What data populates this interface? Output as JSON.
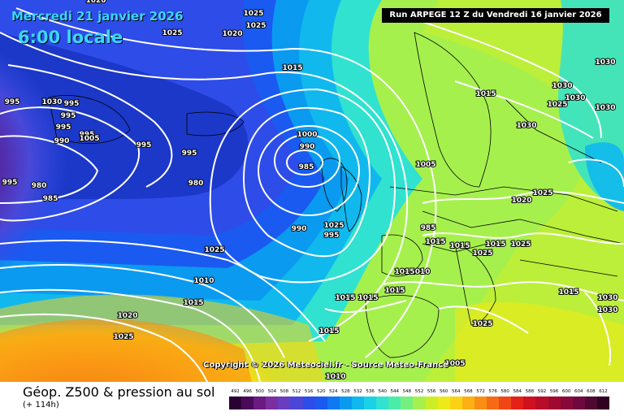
{
  "header": {
    "date": "Mercredi 21 janvier 2026",
    "time": "6:00 locale",
    "run": "Run ARPEGE 12 Z du Vendredi 16 janvier 2026"
  },
  "map": {
    "copyright": "Copyright © 2026 Meteociel.fr - Source Meteo-France",
    "pressure_labels": [
      "1020",
      "1025",
      "1025",
      "1025",
      "1020",
      "1015",
      "1015",
      "1030",
      "1030",
      "1030",
      "1030",
      "1025",
      "1030",
      "1030",
      "995",
      "995",
      "995",
      "995",
      "995",
      "1005",
      "995",
      "995",
      "980",
      "985",
      "990",
      "995",
      "1000",
      "990",
      "985",
      "980",
      "1005",
      "1020",
      "1025",
      "1025",
      "990",
      "995",
      "985",
      "1015",
      "1015",
      "1015",
      "1025",
      "1025",
      "1025",
      "1010",
      "1010",
      "1015",
      "1015",
      "1015",
      "1015",
      "1015",
      "1015",
      "1020",
      "1025",
      "1025",
      "1005",
      "1010",
      "1015",
      "1030",
      "1030"
    ],
    "low_centers": [
      "980",
      "980"
    ]
  },
  "footer": {
    "title": "Géop. Z500 & pression au sol",
    "subtitle": "(+ 114h)"
  },
  "legend": {
    "ticks": [
      "492",
      "496",
      "500",
      "504",
      "508",
      "512",
      "516",
      "520",
      "524",
      "528",
      "532",
      "536",
      "540",
      "544",
      "548",
      "552",
      "556",
      "560",
      "564",
      "568",
      "572",
      "576",
      "580",
      "584",
      "588",
      "592",
      "596",
      "600",
      "604",
      "608",
      "612"
    ],
    "colors": [
      "#2a0033",
      "#4a0a5a",
      "#6a1a80",
      "#7a2ea0",
      "#6a3cc0",
      "#4a46d8",
      "#2e4ce8",
      "#1a5af0",
      "#0f78f2",
      "#0a9af0",
      "#10b8ee",
      "#1ad2e8",
      "#30e2cf",
      "#4aecaa",
      "#74f080",
      "#a6f04e",
      "#ccee28",
      "#ecea18",
      "#fcd216",
      "#fcb014",
      "#fa8e14",
      "#f66a14",
      "#f04616",
      "#e42018",
      "#d01020",
      "#b80c28",
      "#a00830",
      "#880838",
      "#700840",
      "#500830",
      "#300020"
    ]
  }
}
